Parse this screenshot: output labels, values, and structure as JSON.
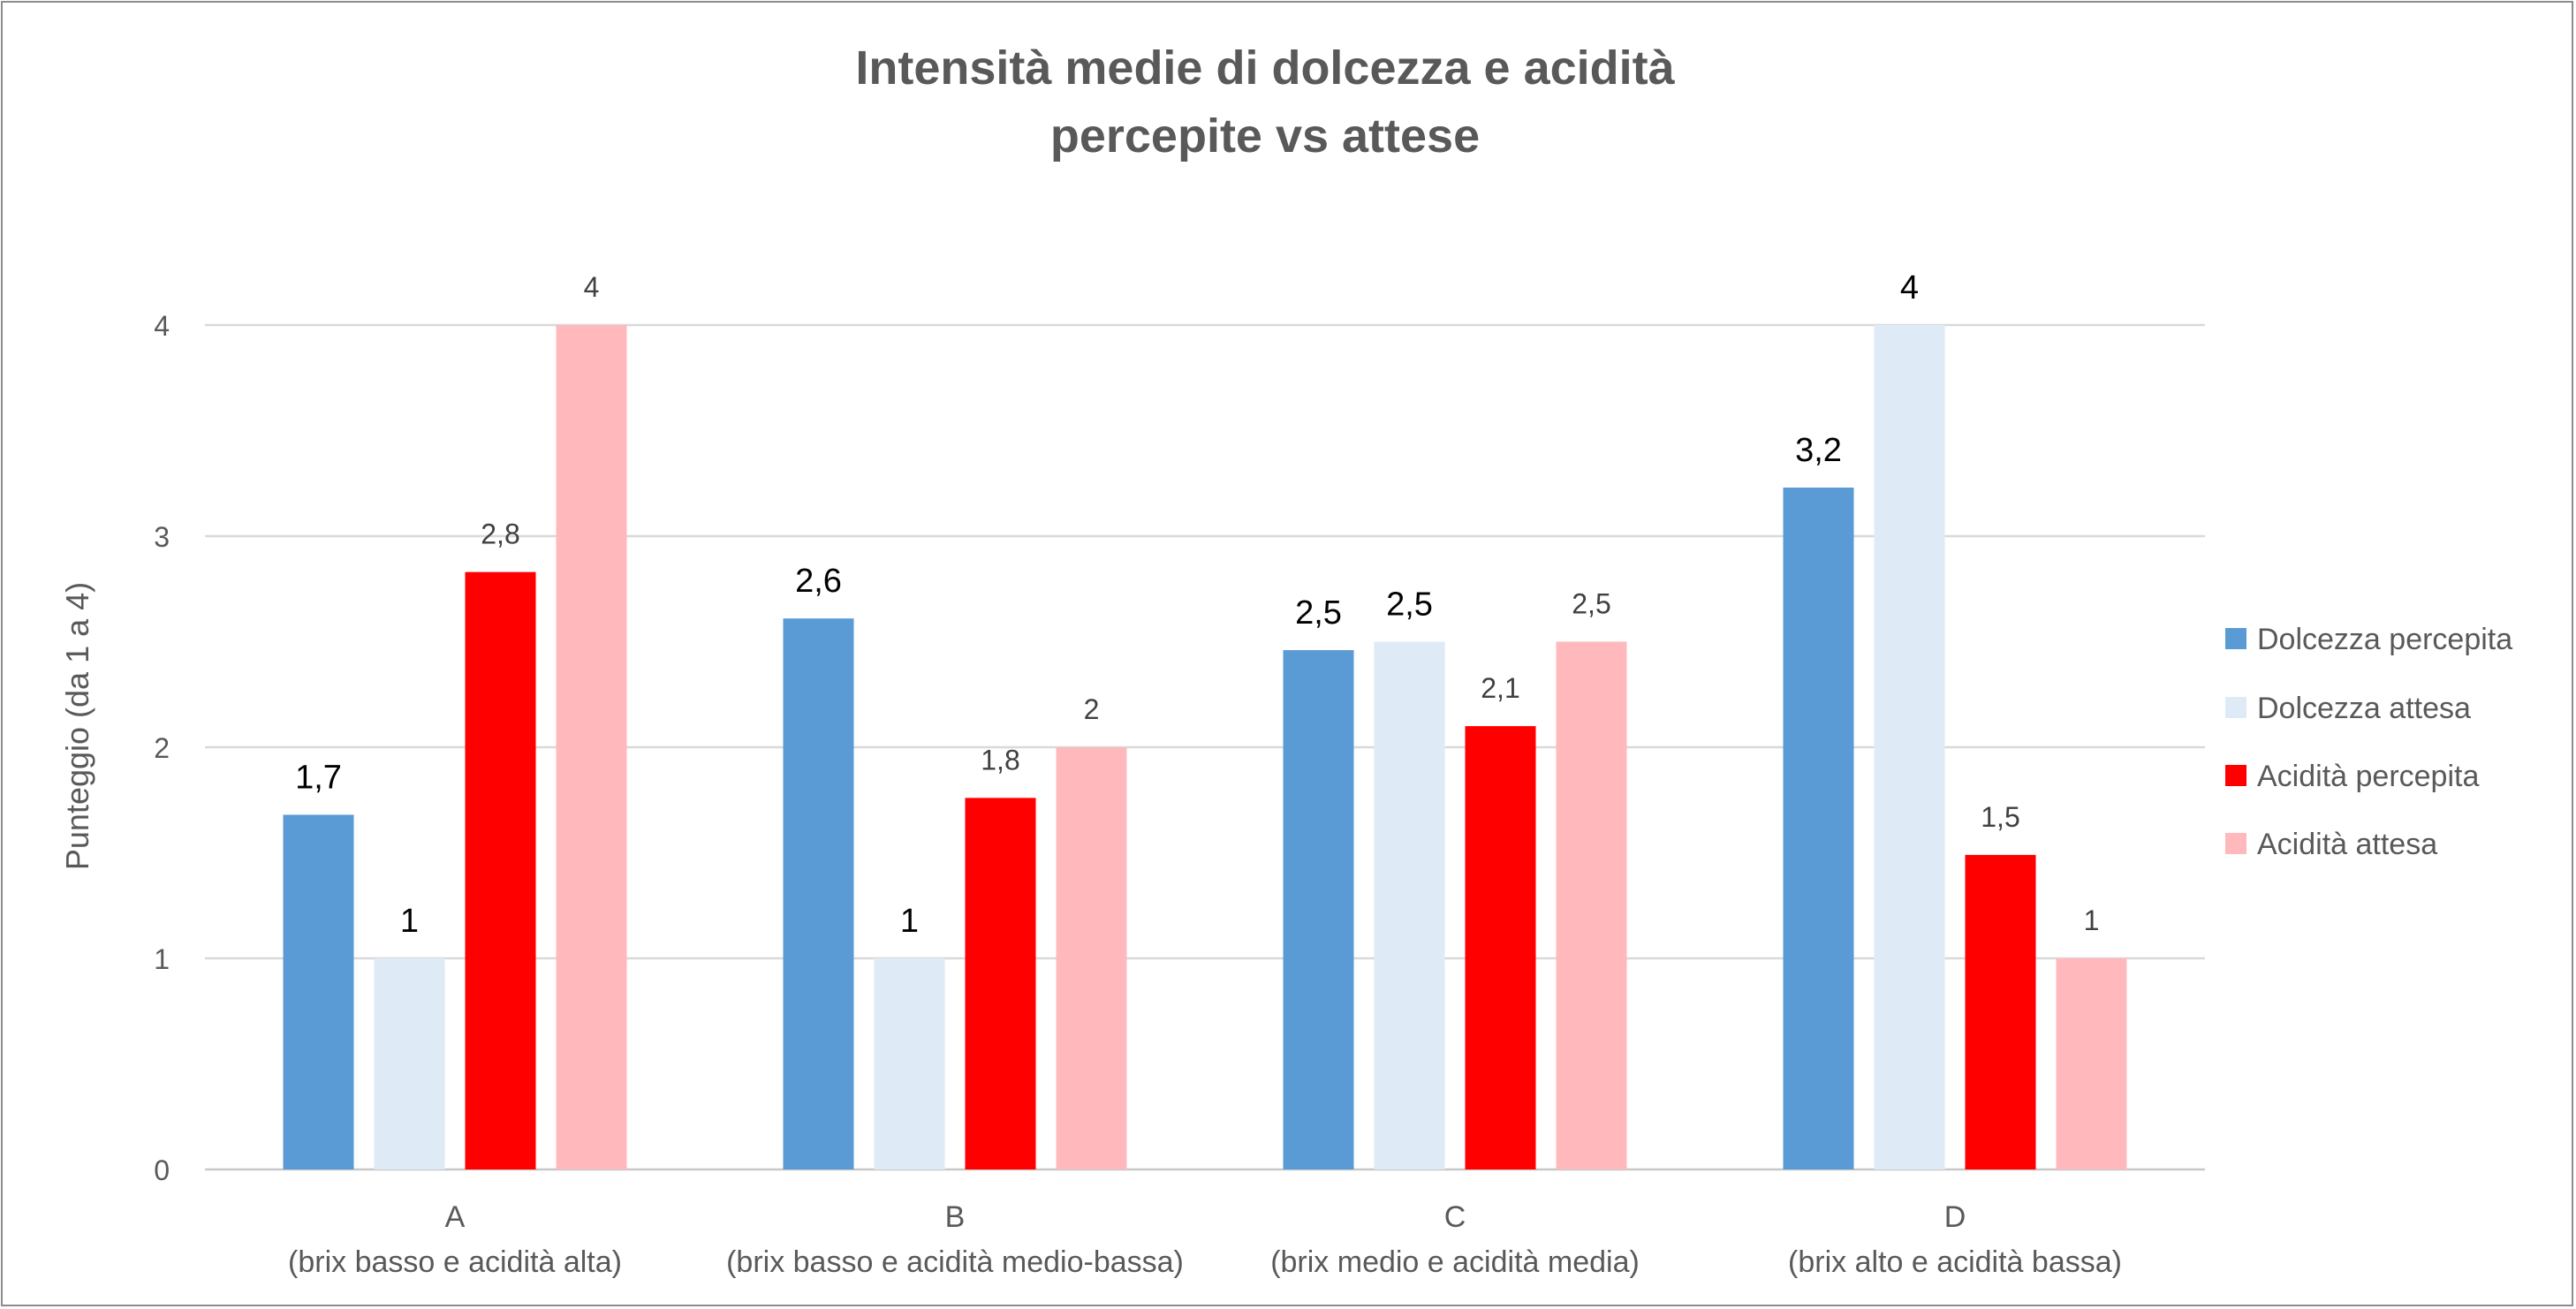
{
  "chart_data": {
    "type": "bar",
    "title_lines": [
      "Intensità medie di dolcezza e acidità",
      "percepite vs attese"
    ],
    "ylabel": "Punteggio (da 1 a 4)",
    "xlabel": "",
    "ylim": [
      0,
      4
    ],
    "yticks": [
      "0",
      "1",
      "2",
      "3",
      "4"
    ],
    "grid": true,
    "legend_position": "right",
    "categories": [
      {
        "line1": "A",
        "line2": "(brix basso e acidità alta)"
      },
      {
        "line1": "B",
        "line2": "(brix basso e acidità medio-bassa)"
      },
      {
        "line1": "C",
        "line2": "(brix medio e acidità media)"
      },
      {
        "line1": "D",
        "line2": "(brix alto e acidità bassa)"
      }
    ],
    "series": [
      {
        "name": "Dolcezza percepita",
        "color": "#5b9bd5",
        "values": [
          1.68,
          2.61,
          2.46,
          3.23
        ],
        "labels": [
          "1,7",
          "2,6",
          "2,5",
          "3,2"
        ]
      },
      {
        "name": "Dolcezza attesa",
        "color": "#deebf7",
        "values": [
          1,
          1,
          2.5,
          4
        ],
        "labels": [
          "1",
          "1",
          "2,5",
          "4"
        ]
      },
      {
        "name": "Acidità percepita",
        "color": "#ff0000",
        "values": [
          2.83,
          1.76,
          2.1,
          1.49
        ],
        "labels": [
          "2,8",
          "1,8",
          "2,1",
          "1,5"
        ]
      },
      {
        "name": "Acidità attesa",
        "color": "#ffb9bd",
        "values": [
          4,
          2,
          2.5,
          1
        ],
        "labels": [
          "4",
          "2",
          "2,5",
          "1"
        ]
      }
    ],
    "label_emphasis": [
      [
        true,
        true,
        false,
        false
      ],
      [
        true,
        true,
        false,
        false
      ],
      [
        true,
        true,
        false,
        false
      ],
      [
        true,
        true,
        false,
        false
      ]
    ]
  }
}
